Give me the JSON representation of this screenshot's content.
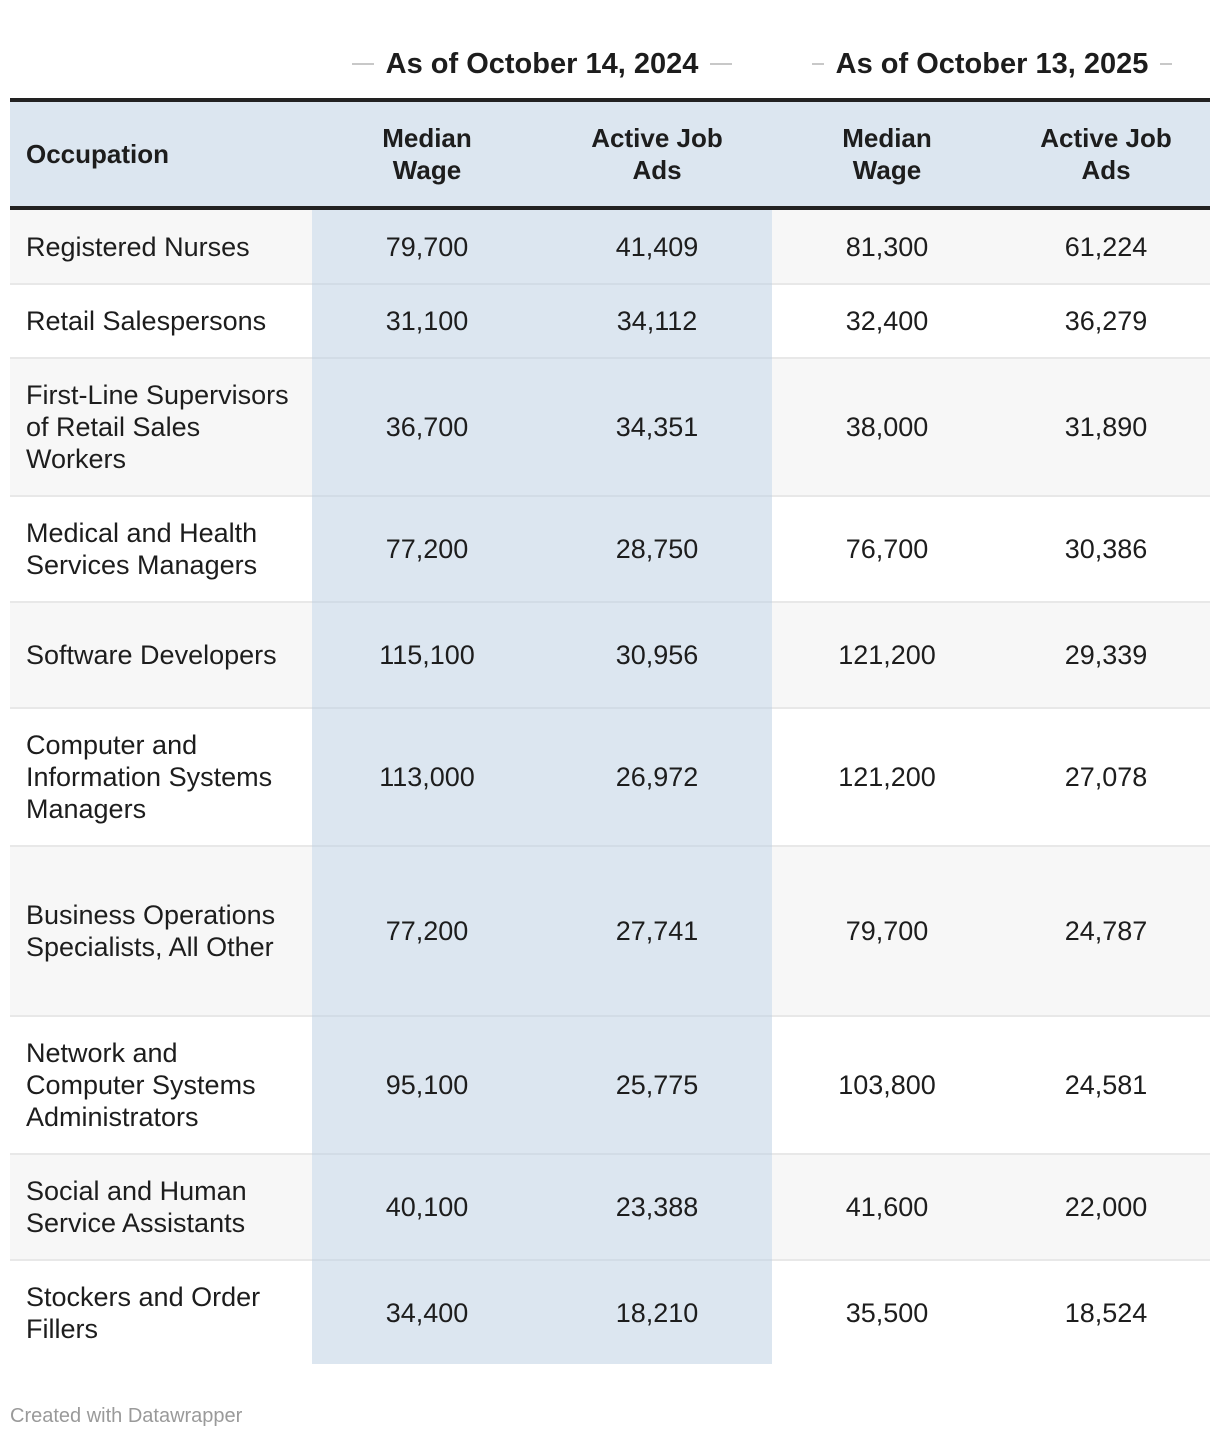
{
  "chart_data": {
    "type": "table",
    "group_headers": [
      "As of October 14, 2024",
      "As of October 13, 2025"
    ],
    "columns": [
      "Occupation",
      "Median Wage",
      "Active Job Ads",
      "Median Wage",
      "Active Job Ads"
    ],
    "rows": [
      [
        "Registered Nurses",
        "79,700",
        "41,409",
        "81,300",
        "61,224"
      ],
      [
        "Retail Salespersons",
        "31,100",
        "34,112",
        "32,400",
        "36,279"
      ],
      [
        "First-Line Supervisors of Retail Sales Workers",
        "36,700",
        "34,351",
        "38,000",
        "31,890"
      ],
      [
        "Medical and Health Services Managers",
        "77,200",
        "28,750",
        "76,700",
        "30,386"
      ],
      [
        "Software Developers",
        "115,100",
        "30,956",
        "121,200",
        "29,339"
      ],
      [
        "Computer and Information Systems Managers",
        "113,000",
        "26,972",
        "121,200",
        "27,078"
      ],
      [
        "Business Operations Specialists, All Other",
        "77,200",
        "27,741",
        "79,700",
        "24,787"
      ],
      [
        "Network and Computer Systems Administrators",
        "95,100",
        "25,775",
        "103,800",
        "24,581"
      ],
      [
        "Social and Human Service Assistants",
        "40,100",
        "23,388",
        "41,600",
        "22,000"
      ],
      [
        "Stockers and Order Fillers",
        "34,400",
        "18,210",
        "35,500",
        "18,524"
      ]
    ]
  },
  "footer": "Created with Datawrapper",
  "colors": {
    "highlight": "#dce6f0",
    "stripe": "#f7f7f7",
    "rule": "#222222",
    "footer_text": "#9a9a9a"
  }
}
